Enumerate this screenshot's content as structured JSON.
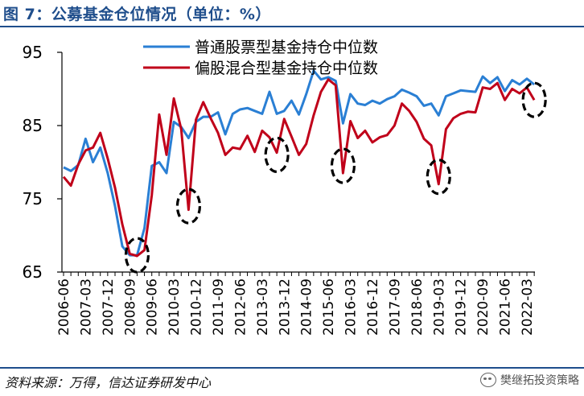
{
  "header": {
    "title": "图 7：公募基金仓位情况（单位：%）"
  },
  "footer": {
    "source": "资料来源：万得，信达证券研发中心",
    "watermark": "樊继拓投资策略"
  },
  "colors": {
    "stock_fund": "#2a7fd4",
    "hybrid_fund": "#c0001a",
    "circle": "#000000"
  },
  "chart_data": {
    "type": "line",
    "title": "",
    "xlabel": "",
    "ylabel": "",
    "ylim": [
      65,
      95
    ],
    "yticks": [
      65,
      75,
      85,
      95
    ],
    "xtick_labels": [
      "2006-06",
      "2007-03",
      "2007-12",
      "2008-09",
      "2009-06",
      "2010-03",
      "2010-12",
      "2011-09",
      "2012-06",
      "2013-03",
      "2013-12",
      "2014-09",
      "2015-06",
      "2016-03",
      "2016-12",
      "2017-09",
      "2018-06",
      "2019-03",
      "2019-12",
      "2020-09",
      "2021-06",
      "2022-03"
    ],
    "legend_position": "top-right",
    "x": [
      "2006-06",
      "2006-09",
      "2006-12",
      "2007-03",
      "2007-06",
      "2007-09",
      "2007-12",
      "2008-03",
      "2008-06",
      "2008-09",
      "2008-12",
      "2009-03",
      "2009-06",
      "2009-09",
      "2009-12",
      "2010-03",
      "2010-06",
      "2010-09",
      "2010-12",
      "2011-03",
      "2011-06",
      "2011-09",
      "2011-12",
      "2012-03",
      "2012-06",
      "2012-09",
      "2012-12",
      "2013-03",
      "2013-06",
      "2013-09",
      "2013-12",
      "2014-03",
      "2014-06",
      "2014-09",
      "2014-12",
      "2015-03",
      "2015-06",
      "2015-09",
      "2015-12",
      "2016-03",
      "2016-06",
      "2016-09",
      "2016-12",
      "2017-03",
      "2017-06",
      "2017-09",
      "2017-12",
      "2018-03",
      "2018-06",
      "2018-09",
      "2018-12",
      "2019-03",
      "2019-06",
      "2019-09",
      "2019-12",
      "2020-03",
      "2020-06",
      "2020-09",
      "2020-12",
      "2021-03",
      "2021-06",
      "2021-09",
      "2021-12",
      "2022-03",
      "2022-06"
    ],
    "series": [
      {
        "name": "普通股票型基金持仓中位数",
        "values": [
          79.3,
          78.8,
          79.6,
          83.2,
          80.0,
          82.0,
          78.5,
          74.0,
          68.5,
          67.3,
          67.3,
          71.0,
          79.5,
          80.0,
          78.5,
          85.5,
          84.8,
          83.3,
          85.5,
          86.2,
          86.2,
          86.8,
          83.8,
          86.6,
          87.2,
          87.4,
          87.0,
          86.6,
          89.6,
          86.6,
          87.0,
          88.4,
          86.5,
          89.3,
          92.5,
          91.3,
          91.6,
          91.1,
          85.3,
          89.3,
          88.0,
          87.8,
          88.4,
          88.0,
          88.6,
          89.0,
          89.9,
          89.5,
          89.0,
          87.7,
          88.0,
          86.4,
          89.0,
          89.4,
          89.8,
          89.7,
          89.6,
          91.7,
          90.8,
          91.6,
          89.7,
          91.2,
          90.6,
          91.4,
          90.6
        ]
      },
      {
        "name": "偏股混合型基金持仓中位数",
        "values": [
          78.0,
          76.8,
          79.7,
          81.6,
          82.0,
          84.0,
          80.5,
          76.5,
          71.5,
          67.5,
          67.2,
          68.0,
          75.5,
          86.5,
          81.0,
          88.7,
          84.5,
          73.5,
          85.8,
          88.2,
          86.0,
          84.0,
          81.0,
          82.0,
          81.8,
          83.6,
          81.4,
          84.3,
          83.4,
          81.3,
          85.9,
          83.5,
          81.0,
          82.5,
          86.4,
          89.6,
          91.3,
          90.5,
          78.5,
          85.6,
          83.3,
          84.3,
          82.7,
          83.4,
          83.7,
          85.0,
          88.0,
          87.0,
          85.5,
          83.2,
          82.3,
          77.0,
          84.5,
          86.0,
          86.6,
          86.9,
          86.8,
          90.2,
          90.0,
          90.8,
          88.5,
          90.0,
          89.4,
          90.2,
          88.5
        ]
      }
    ],
    "annotations": [
      {
        "shape": "dashed-ellipse",
        "x": "2008-12",
        "y": 67.3
      },
      {
        "shape": "dashed-ellipse",
        "x": "2010-09",
        "y": 74.0
      },
      {
        "shape": "dashed-ellipse",
        "x": "2013-09",
        "y": 81.0
      },
      {
        "shape": "dashed-ellipse",
        "x": "2015-12",
        "y": 79.5
      },
      {
        "shape": "dashed-ellipse",
        "x": "2019-03",
        "y": 78.0
      },
      {
        "shape": "dashed-ellipse",
        "x": "2022-06",
        "y": 88.5
      }
    ]
  }
}
